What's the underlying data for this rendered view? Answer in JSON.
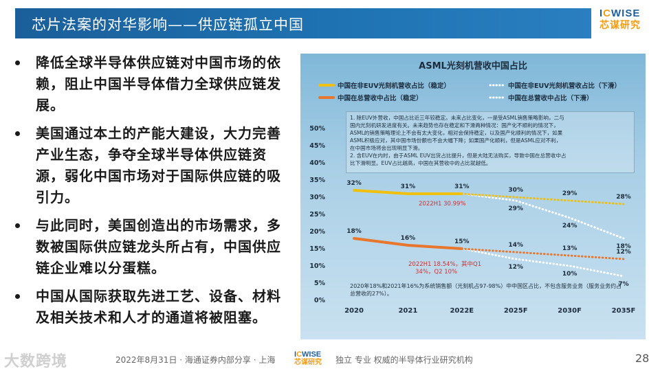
{
  "header": {
    "title": "芯片法案的对华影响——供应链孤立中国",
    "logo_top_a": "I",
    "logo_top_b": "C",
    "logo_top_c": "WISE",
    "logo_bottom": "芯谋研究"
  },
  "bullets": [
    "降低全球半导体供应链对中国市场的依赖，阻止中国半导体借力全球供应链发展。",
    "美国通过本土的产能大建设，大力完善产业生态，争夺全球半导体供应链资源，弱化中国市场对于国际供应链的吸引力。",
    "与此同时，美国创造出的市场需求，多数被国际供应链龙头所占有，中国供应链企业难以分蛋糕。",
    "中国从国际获取先进工艺、设备、材料及相关技术和人才的通道将被阻塞。"
  ],
  "note_lines": [
    "1. 除EUV外营收，中国占比近三年较稳定。未来占比变化，一是受ASML销售策略影响，二与",
    "国内光刻机研发进度有关。未来趋势也存在稳定和下滑两种情况：国产化不顺利的情况下，",
    "ASML的销售策略理论上不会有太大变化，相对会保持稳定，以及国产化顺利的情况下，如果",
    "ASML积极应对，其中国市场份额也不会大幅下降；如果国产化顺利，但是ASML应对不利，",
    "在中国市场将会出现明显下滑。",
    "2. 含EUV在内时，由于ASML EUV出货占比提升，但是大陆无法购买，导致中国在总营收中占",
    "比下滑明显。EUV占比越高，中国在其营收中的占比就越低。"
  ],
  "bottom_note": "2020年18%和2021年16%为系统销售额（光刻机占97-98%）中中国区占比，不包含服务业务（服务业务约占总营收的27%）。",
  "annotations": {
    "a1": "2022H1 30.99%",
    "a2_l1": "2022H1 18.54%，其中Q1",
    "a2_l2": "34%，Q2 10%"
  },
  "chart_data": {
    "type": "line",
    "title": "ASML光刻机营收中国占比",
    "categories": [
      "2020",
      "2021",
      "2022E",
      "2025F",
      "2030F",
      "2035F"
    ],
    "y_ticks": [
      "0%",
      "5%",
      "10%",
      "15%",
      "20%",
      "25%",
      "30%",
      "35%",
      "40%",
      "45%",
      "50%"
    ],
    "ylim": [
      0,
      50
    ],
    "series": [
      {
        "name": "中国在非EUV光刻机营收占比（稳定）",
        "color": "#f0c010",
        "style": "solid",
        "x": [
          0,
          1,
          2
        ],
        "values": [
          32,
          31,
          31
        ],
        "labels": [
          "32%",
          "31%",
          "31%"
        ]
      },
      {
        "name": "中国在非EUV光刻机营收占比（下滑）",
        "color": "#ffffff",
        "style": "dotted",
        "x": [
          2,
          3,
          4,
          5
        ],
        "values": [
          31,
          29,
          24,
          18
        ],
        "labels": [
          "",
          "29%",
          "24%",
          "18%"
        ]
      },
      {
        "name": "中国在总营收中占比（稳定）",
        "color": "#e8762c",
        "style": "solid",
        "x": [
          0,
          1,
          2
        ],
        "values": [
          18,
          16,
          15
        ],
        "labels": [
          "18%",
          "16%",
          "15%"
        ]
      },
      {
        "name": "中国在总营收中占比（下滑）",
        "color": "#ffffff",
        "style": "dotted",
        "x": [
          2,
          3,
          4,
          5
        ],
        "values": [
          15,
          12,
          10,
          7
        ],
        "labels": [
          "",
          "12%",
          "10%",
          "7%"
        ]
      },
      {
        "name": "stable-projection-yellow",
        "color": "#f0c010",
        "style": "dotted",
        "legend": false,
        "x": [
          2,
          3,
          4,
          5
        ],
        "values": [
          31,
          30,
          29,
          28
        ],
        "labels": [
          "",
          "30%",
          "29%",
          "28%"
        ]
      },
      {
        "name": "stable-projection-orange",
        "color": "#e8762c",
        "style": "dotted",
        "legend": false,
        "x": [
          2,
          3,
          4,
          5
        ],
        "values": [
          15,
          14,
          13,
          12
        ],
        "labels": [
          "",
          "14%",
          "13%",
          "12%"
        ]
      }
    ]
  },
  "footer": {
    "watermark": "大数跨境",
    "date_text": "2022年8月31日 · 海通证券内部分享 · 上海",
    "logo_top_a": "I",
    "logo_top_b": "C",
    "logo_top_c": "WISE",
    "logo_bottom": "芯谋研究",
    "slogan": "独立 专业 权威的半导体行业研究机构",
    "page_number": "28"
  }
}
